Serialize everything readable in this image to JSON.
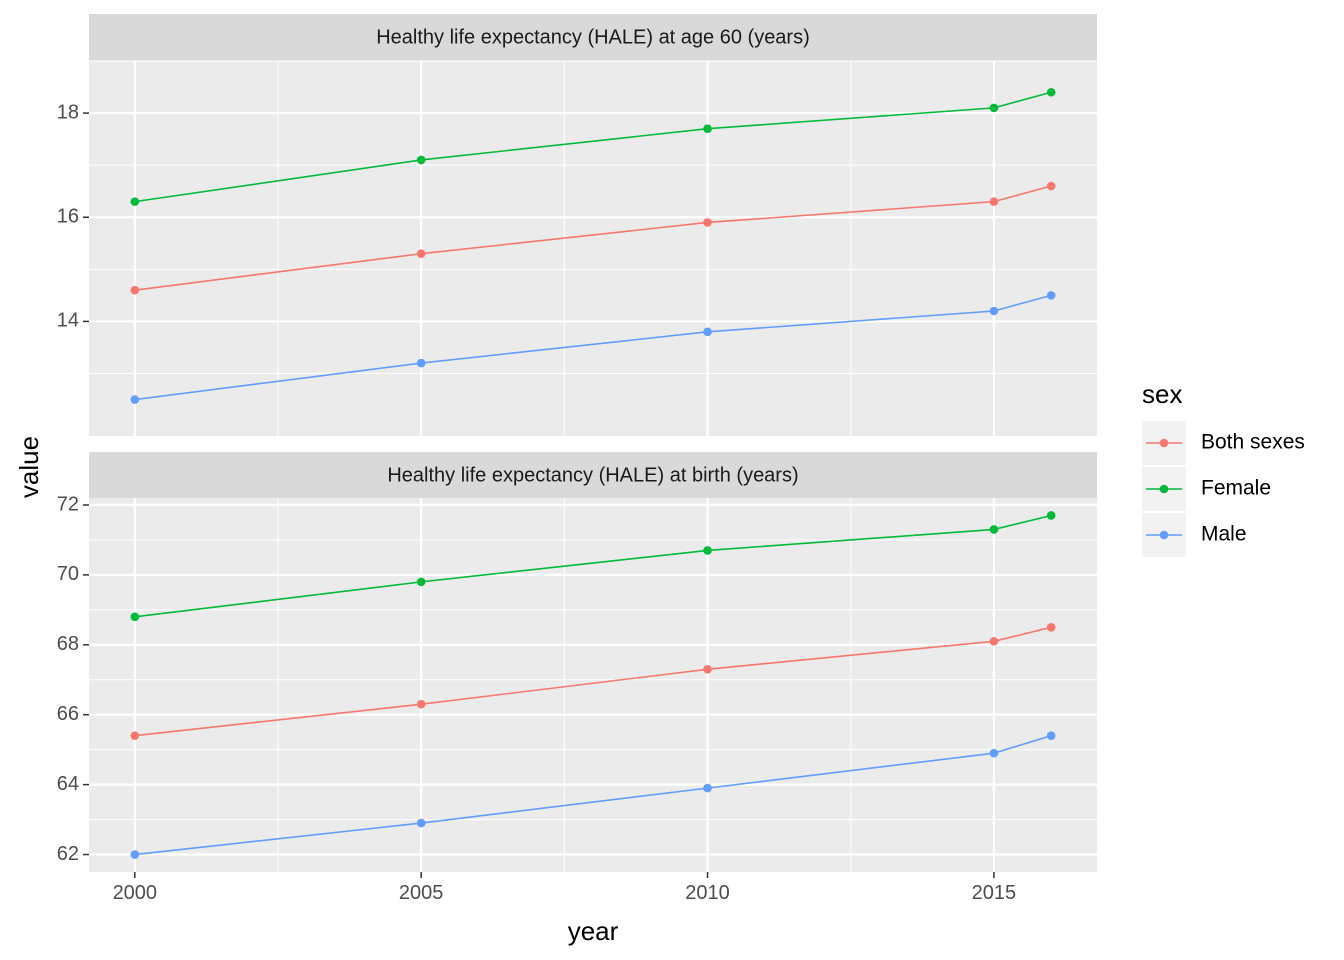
{
  "chart_data": {
    "type": "line",
    "xlabel": "year",
    "ylabel": "value",
    "x_ticks": [
      2000,
      2005,
      2010,
      2015
    ],
    "xlim": [
      1999.2,
      2016.8
    ],
    "grid": true,
    "legend": {
      "title": "sex",
      "placement": "right",
      "items": [
        {
          "label": "Both sexes",
          "color": "#F8766D"
        },
        {
          "label": "Female",
          "color": "#00BA38"
        },
        {
          "label": "Male",
          "color": "#619CFF"
        }
      ]
    },
    "panels": [
      {
        "strip": "Healthy life expectancy (HALE) at age 60 (years)",
        "ylim": [
          11.8,
          19.0
        ],
        "y_ticks": [
          14,
          16,
          18
        ],
        "x": [
          2000,
          2005,
          2010,
          2015,
          2016
        ],
        "series": [
          {
            "name": "Both sexes",
            "color": "#F8766D",
            "values": [
              14.6,
              15.3,
              15.9,
              16.3,
              16.6
            ]
          },
          {
            "name": "Female",
            "color": "#00BA38",
            "values": [
              16.3,
              17.1,
              17.7,
              18.1,
              18.4
            ]
          },
          {
            "name": "Male",
            "color": "#619CFF",
            "values": [
              12.5,
              13.2,
              13.8,
              14.2,
              14.5
            ]
          }
        ]
      },
      {
        "strip": "Healthy life expectancy (HALE) at birth (years)",
        "ylim": [
          61.5,
          72.2
        ],
        "y_ticks": [
          62,
          64,
          66,
          68,
          70,
          72
        ],
        "x": [
          2000,
          2005,
          2010,
          2015,
          2016
        ],
        "series": [
          {
            "name": "Both sexes",
            "color": "#F8766D",
            "values": [
              65.4,
              66.3,
              67.3,
              68.1,
              68.5
            ]
          },
          {
            "name": "Female",
            "color": "#00BA38",
            "values": [
              68.8,
              69.8,
              70.7,
              71.3,
              71.7
            ]
          },
          {
            "name": "Male",
            "color": "#619CFF",
            "values": [
              62.0,
              62.9,
              63.9,
              64.9,
              65.4
            ]
          }
        ]
      }
    ]
  }
}
